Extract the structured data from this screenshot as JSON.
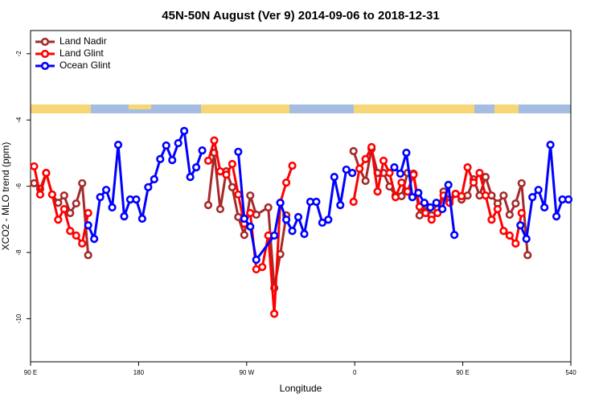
{
  "chart_data": {
    "type": "line",
    "title": "45N-50N August (Ver 9)   2014-09-06 to 2018-12-31",
    "x_label": "Longitude",
    "y_label": "XCO2 - MLO trend (ppm)",
    "xlim": [
      90,
      540
    ],
    "xticks": [
      {
        "value": 90,
        "label": "90 E"
      },
      180,
      {
        "value": 270,
        "label": "90 W"
      },
      {
        "value": 360,
        "label": "0"
      },
      {
        "value": 450,
        "label": "90 E"
      },
      540
    ],
    "ylim": [
      -11.3,
      -1.3
    ],
    "yticks": [
      -10,
      -8,
      -6,
      -4,
      -2
    ],
    "legend": "top-left",
    "series": [
      {
        "name": "Land Nadir",
        "color": "#a52a2a",
        "x": [
          93,
          98,
          103,
          108,
          113,
          118,
          123,
          128,
          133,
          138,
          188,
          238,
          243,
          248,
          253,
          258,
          263,
          268,
          273,
          278,
          288,
          293,
          298,
          303,
          330,
          359,
          364,
          369,
          374,
          379,
          384,
          389,
          394,
          399,
          404,
          409,
          414,
          419,
          424,
          429,
          434,
          439,
          444,
          449,
          454,
          459,
          464,
          469,
          474,
          479,
          484,
          489,
          494,
          499,
          504
        ],
        "values": [
          -5.91,
          -6.08,
          -5.6,
          -6.25,
          -6.5,
          -6.28,
          -6.81,
          -6.52,
          -5.91,
          -8.08,
          null,
          -6.57,
          -4.99,
          -6.69,
          -5.55,
          -6.03,
          -6.93,
          -7.47,
          -6.28,
          -6.86,
          -6.64,
          -9.07,
          -8.05,
          -6.88,
          null,
          -4.94,
          -5.47,
          -5.84,
          -4.87,
          -5.6,
          -5.6,
          -6.01,
          -6.28,
          -6.3,
          -5.6,
          -5.62,
          -6.88,
          -6.57,
          -6.88,
          -6.69,
          -6.16,
          -6.4,
          -6.23,
          -6.4,
          -6.28,
          -5.79,
          -6.28,
          -5.72,
          -6.28,
          -6.52,
          -6.28,
          -6.86,
          -6.52,
          -5.91,
          -8.08
        ]
      },
      {
        "name": "Land Glint",
        "color": "#ff0000",
        "x": [
          93,
          98,
          103,
          108,
          113,
          118,
          123,
          128,
          133,
          138,
          188,
          238,
          243,
          248,
          253,
          258,
          263,
          268,
          273,
          278,
          283,
          288,
          293,
          298,
          303,
          308,
          333,
          359,
          364,
          369,
          374,
          379,
          384,
          389,
          394,
          399,
          404,
          409,
          414,
          419,
          424,
          429,
          434,
          439,
          444,
          449,
          454,
          459,
          464,
          469,
          474,
          479,
          484,
          489,
          494,
          499
        ],
        "values": [
          -5.4,
          -6.25,
          -5.6,
          -6.25,
          -7.01,
          -6.69,
          -7.35,
          -7.49,
          -7.73,
          -6.81,
          null,
          -5.23,
          -4.62,
          -5.55,
          -5.65,
          -5.33,
          -6.25,
          -7.13,
          -6.81,
          -8.51,
          -8.44,
          -7.49,
          -9.85,
          -6.5,
          -5.89,
          -5.38,
          null,
          -6.47,
          -5.47,
          -5.18,
          -4.82,
          -6.16,
          -5.23,
          -5.6,
          -6.33,
          -5.89,
          -6.16,
          -5.65,
          -6.62,
          -6.81,
          -7.01,
          -6.81,
          -6.28,
          -6.5,
          -6.23,
          -6.3,
          -5.43,
          -5.89,
          -5.6,
          -6.28,
          -7.01,
          -6.69,
          -7.35,
          -7.49,
          -7.73,
          -6.81
        ]
      },
      {
        "name": "Ocean Glint",
        "color": "#0000ff",
        "x": [
          138,
          143,
          148,
          153,
          158,
          163,
          168,
          173,
          178,
          183,
          188,
          193,
          198,
          203,
          208,
          213,
          218,
          223,
          228,
          233,
          248,
          263,
          268,
          273,
          278,
          293,
          298,
          303,
          308,
          313,
          318,
          323,
          328,
          333,
          338,
          343,
          348,
          353,
          358,
          375,
          393,
          398,
          403,
          408,
          413,
          418,
          423,
          428,
          433,
          438,
          443,
          470,
          498,
          503,
          508,
          513,
          518,
          523,
          528,
          533,
          538
        ],
        "values": [
          -7.18,
          -7.59,
          -6.33,
          -6.11,
          -6.64,
          -4.75,
          -6.91,
          -6.4,
          -6.4,
          -6.98,
          -6.03,
          -5.79,
          -5.18,
          -4.77,
          -5.21,
          -4.7,
          -4.33,
          -5.72,
          -5.43,
          -4.92,
          null,
          -4.96,
          -6.98,
          -7.22,
          -8.22,
          -7.49,
          -6.5,
          -7.01,
          -7.35,
          -6.93,
          -7.44,
          -6.47,
          -6.47,
          -7.1,
          -7.01,
          -5.72,
          -6.57,
          -5.5,
          -5.6,
          null,
          -5.43,
          -5.62,
          -4.99,
          -6.33,
          -6.2,
          -6.5,
          -6.64,
          -6.5,
          -6.69,
          -5.96,
          -7.47,
          null,
          -7.18,
          -7.59,
          -6.33,
          -6.11,
          -6.64,
          -4.75,
          -6.91,
          -6.4,
          -6.4
        ]
      }
    ]
  }
}
